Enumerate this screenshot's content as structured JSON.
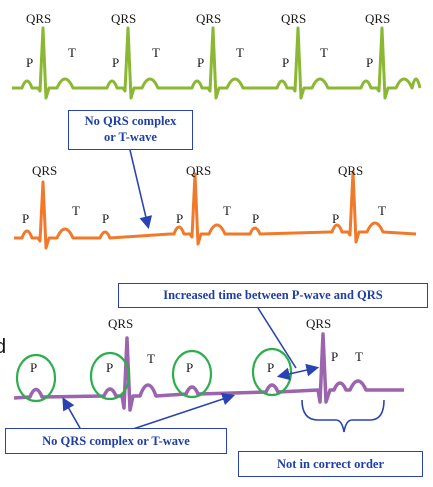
{
  "colors": {
    "top_trace": "#8ab833",
    "middle_trace": "#f07a2a",
    "bottom_trace": "#9c64ad",
    "callout_text": "#1f3ea8",
    "arrow": "#2a43b3",
    "circle": "#2cae4c"
  },
  "top_strip": {
    "qrs_labels": [
      "QRS",
      "QRS",
      "QRS",
      "QRS",
      "QRS"
    ],
    "p_labels": [
      "P",
      "P",
      "P",
      "P",
      "P"
    ],
    "t_labels": [
      "T",
      "T",
      "T",
      "T"
    ]
  },
  "middle_strip": {
    "qrs_labels": [
      "QRS",
      "QRS",
      "QRS"
    ],
    "p_labels": [
      "P",
      "P",
      "P",
      "P",
      "P"
    ],
    "t_labels": [
      "T",
      "T",
      "T"
    ]
  },
  "bottom_strip": {
    "qrs_labels": [
      "QRS",
      "QRS"
    ],
    "p_labels": [
      "P",
      "P",
      "P",
      "P",
      "P"
    ],
    "t_labels": [
      "T",
      "T"
    ]
  },
  "callouts": {
    "no_qrs_t_line1": "No QRS complex",
    "no_qrs_t_line2": "or T-wave",
    "increased_time": "Increased time between P-wave and QRS",
    "no_qrs_t_bottom": "No QRS complex or T-wave",
    "not_in_order": "Not in correct order"
  },
  "edge_fragment": "d"
}
